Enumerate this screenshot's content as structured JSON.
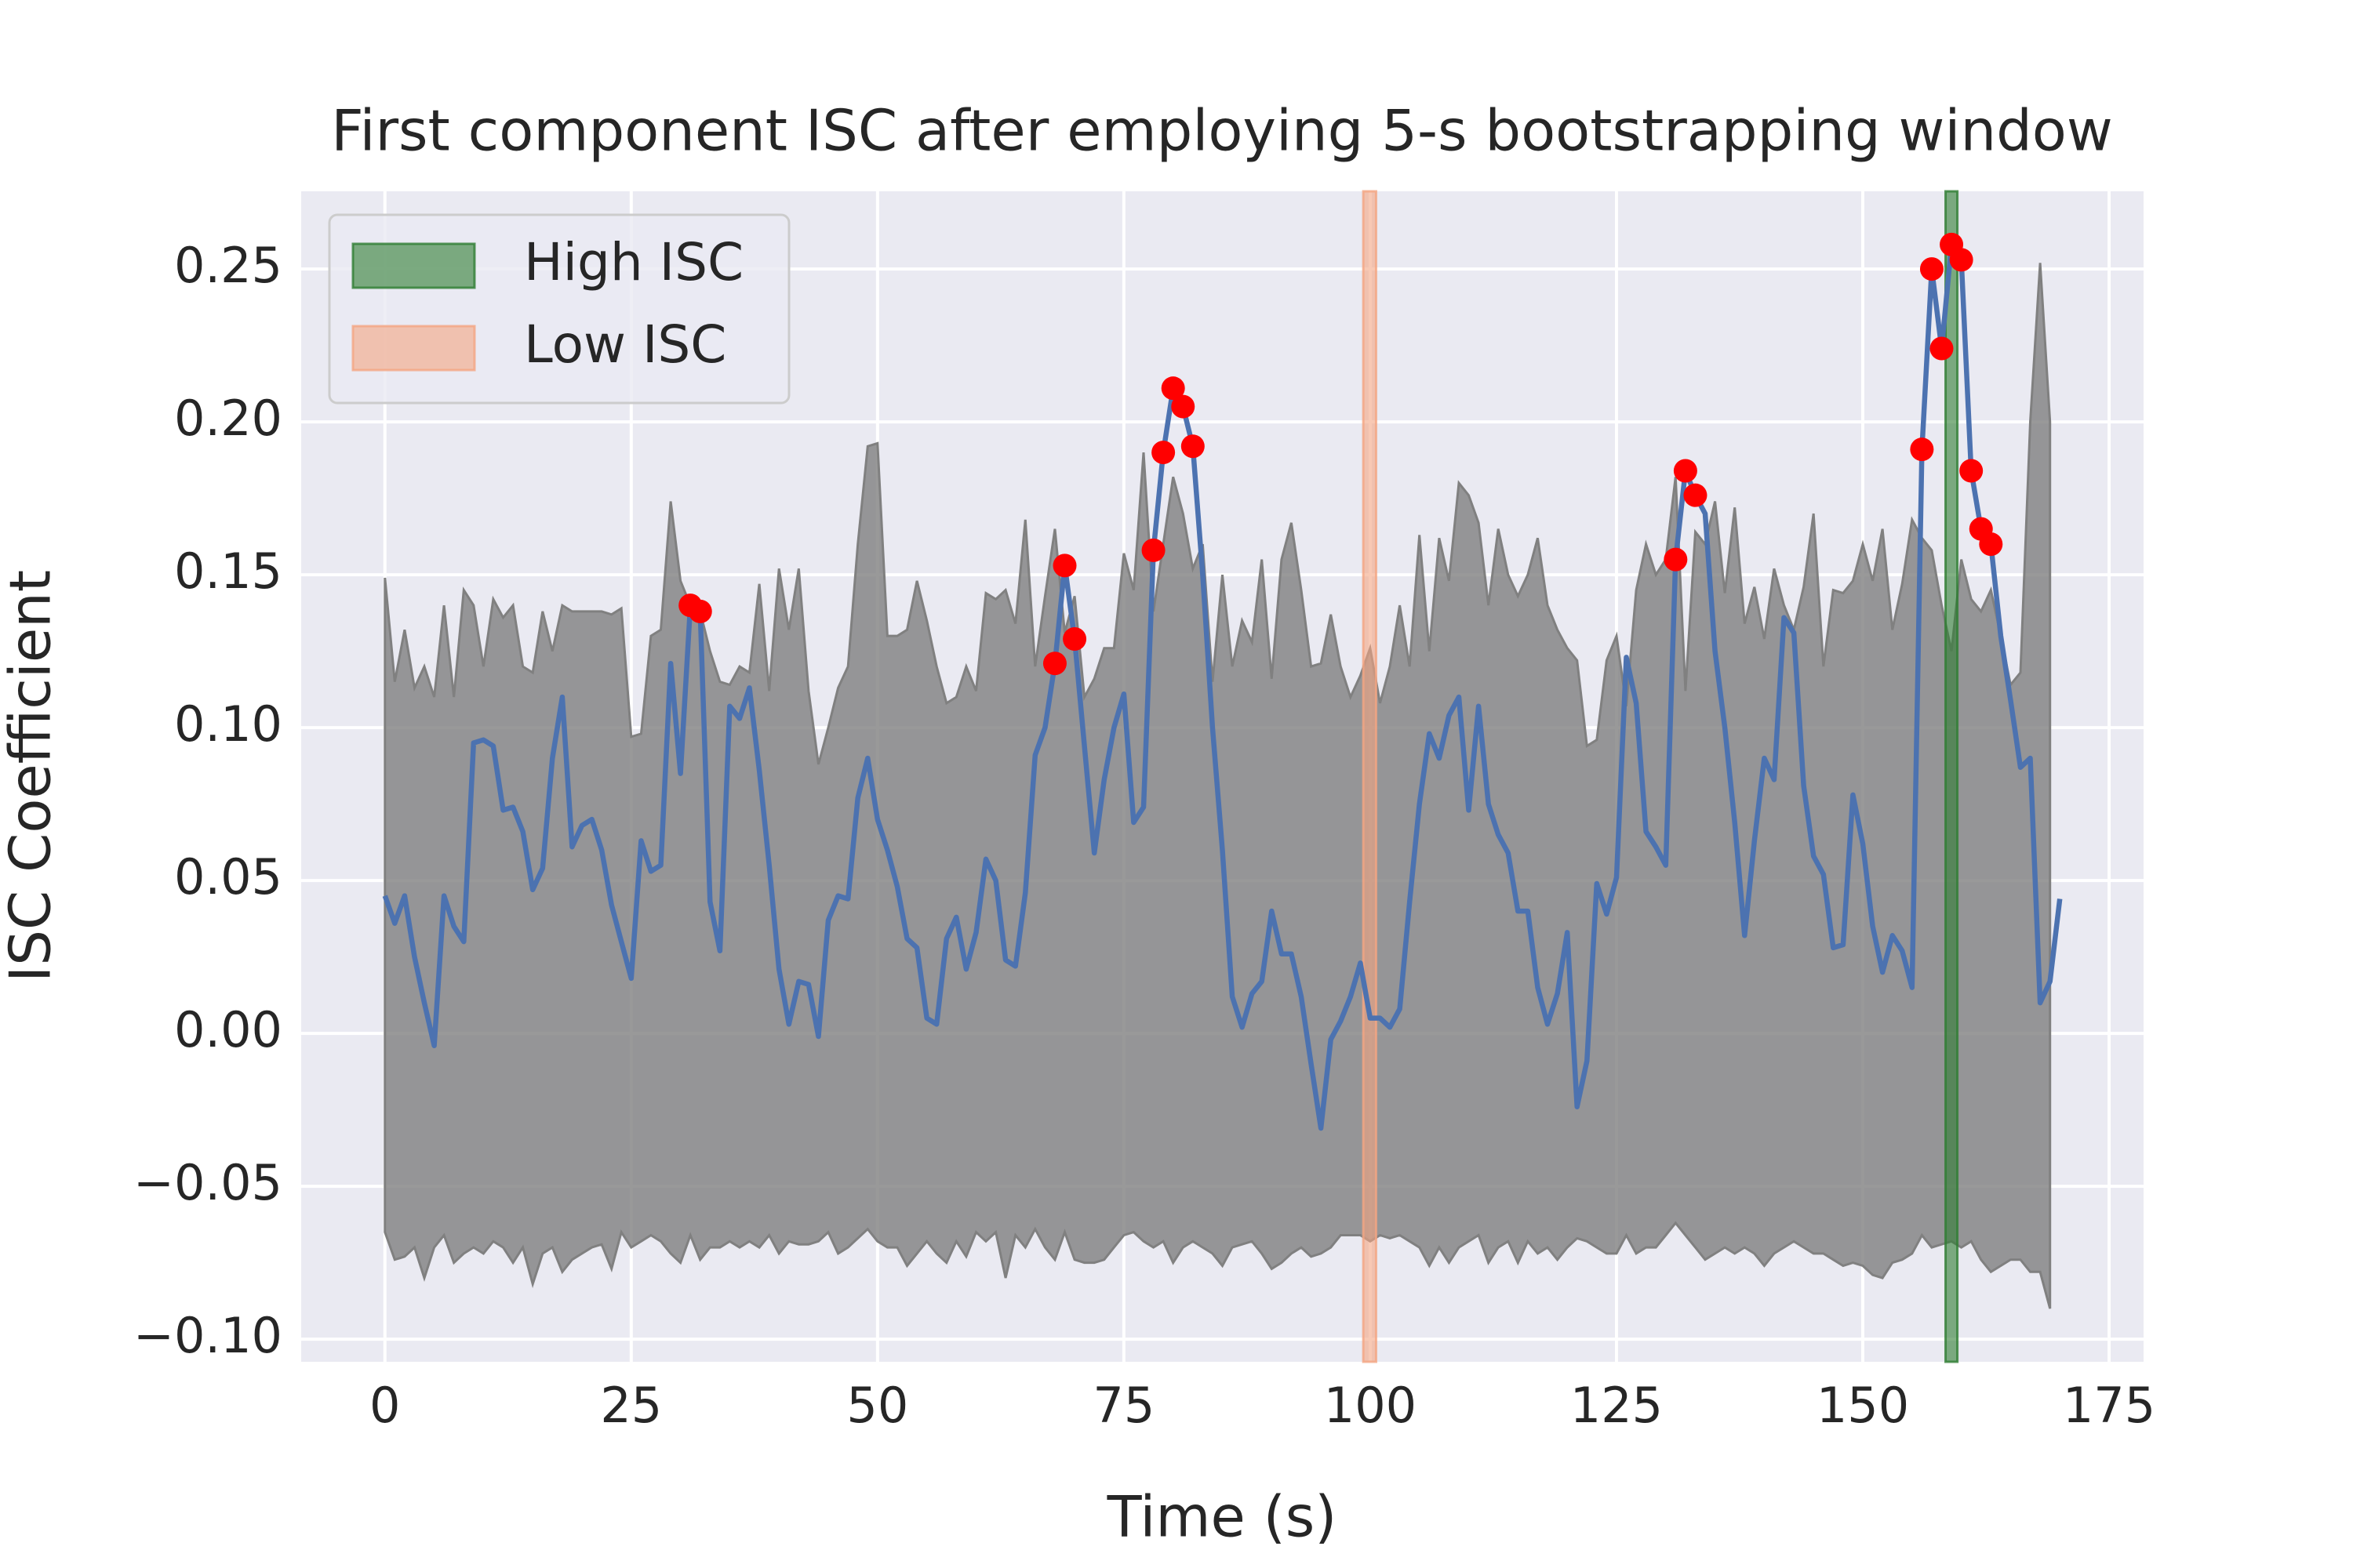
{
  "chart_data": {
    "type": "line",
    "title": "First component ISC after employing 5-s bootstrapping window",
    "x_label": "Time (s)",
    "y_label": "ISC Coefficient",
    "xlim": [
      -8.5,
      178.5
    ],
    "ylim": [
      -0.1074,
      0.2754
    ],
    "xticks": [
      0,
      25,
      50,
      75,
      100,
      125,
      150,
      175
    ],
    "yticks": [
      {
        "value": -0.1,
        "label": "−0.10"
      },
      {
        "value": -0.05,
        "label": "−0.05"
      },
      {
        "value": 0,
        "label": "0.00"
      },
      {
        "value": 0.05,
        "label": "0.05"
      },
      {
        "value": 0.1,
        "label": "0.10"
      },
      {
        "value": 0.15,
        "label": "0.15"
      },
      {
        "value": 0.2,
        "label": "0.20"
      },
      {
        "value": 0.25,
        "label": "0.25"
      }
    ],
    "grid": true,
    "legend": "upper left",
    "color": "#4c72b0",
    "x": [
      0,
      1,
      2,
      3,
      4,
      5,
      6,
      7,
      8,
      9,
      10,
      11,
      12,
      13,
      14,
      15,
      16,
      17,
      18,
      19,
      20,
      21,
      22,
      23,
      24,
      25,
      26,
      27,
      28,
      29,
      30,
      31,
      32,
      33,
      34,
      35,
      36,
      37,
      38,
      39,
      40,
      41,
      42,
      43,
      44,
      45,
      46,
      47,
      48,
      49,
      50,
      51,
      52,
      53,
      54,
      55,
      56,
      57,
      58,
      59,
      60,
      61,
      62,
      63,
      64,
      65,
      66,
      67,
      68,
      69,
      70,
      71,
      72,
      73,
      74,
      75,
      76,
      77,
      78,
      79,
      80,
      81,
      82,
      83,
      84,
      85,
      86,
      87,
      88,
      89,
      90,
      91,
      92,
      93,
      94,
      95,
      96,
      97,
      98,
      99,
      100,
      101,
      102,
      103,
      104,
      105,
      106,
      107,
      108,
      109,
      110,
      111,
      112,
      113,
      114,
      115,
      116,
      117,
      118,
      119,
      120,
      121,
      122,
      123,
      124,
      125,
      126,
      127,
      128,
      129,
      130,
      131,
      132,
      133,
      134,
      135,
      136,
      137,
      138,
      139,
      140,
      141,
      142,
      143,
      144,
      145,
      146,
      147,
      148,
      149,
      150,
      151,
      152,
      153,
      154,
      155,
      156,
      157,
      158,
      159,
      160,
      161,
      162,
      163,
      164,
      165,
      166,
      167,
      168,
      169,
      170
    ],
    "values": [
      0.045,
      0.036,
      0.045,
      0.025,
      0.01,
      -0.004,
      0.045,
      0.035,
      0.03,
      0.095,
      0.096,
      0.094,
      0.073,
      0.074,
      0.066,
      0.047,
      0.054,
      0.09,
      0.11,
      0.061,
      0.068,
      0.07,
      0.06,
      0.042,
      0.03,
      0.018,
      0.063,
      0.053,
      0.055,
      0.121,
      0.085,
      0.14,
      0.138,
      0.043,
      0.027,
      0.107,
      0.103,
      0.113,
      0.086,
      0.055,
      0.021,
      0.003,
      0.017,
      0.016,
      -0.001,
      0.037,
      0.045,
      0.044,
      0.077,
      0.09,
      0.07,
      0.06,
      0.048,
      0.031,
      0.028,
      0.005,
      0.003,
      0.031,
      0.038,
      0.021,
      0.033,
      0.057,
      0.05,
      0.024,
      0.022,
      0.046,
      0.091,
      0.1,
      0.121,
      0.153,
      0.129,
      0.094,
      0.059,
      0.083,
      0.1,
      0.111,
      0.069,
      0.074,
      0.158,
      0.19,
      0.211,
      0.205,
      0.192,
      0.15,
      0.1,
      0.06,
      0.012,
      0.002,
      0.013,
      0.017,
      0.04,
      0.026,
      0.026,
      0.012,
      -0.01,
      -0.031,
      -0.002,
      0.004,
      0.012,
      0.023,
      0.005,
      0.005,
      0.002,
      0.008,
      0.043,
      0.075,
      0.098,
      0.09,
      0.104,
      0.11,
      0.073,
      0.107,
      0.075,
      0.065,
      0.059,
      0.04,
      0.04,
      0.015,
      0.003,
      0.013,
      0.033,
      -0.024,
      -0.009,
      0.049,
      0.039,
      0.051,
      0.123,
      0.108,
      0.066,
      0.061,
      0.055,
      0.155,
      0.184,
      0.176,
      0.17,
      0.125,
      0.1,
      0.069,
      0.032,
      0.063,
      0.09,
      0.083,
      0.136,
      0.131,
      0.081,
      0.058,
      0.052,
      0.028,
      0.029,
      0.078,
      0.062,
      0.035,
      0.02,
      0.032,
      0.027,
      0.015,
      0.191,
      0.25,
      0.224,
      0.258,
      0.253,
      0.184,
      0.165,
      0.16,
      0.13,
      0.109,
      0.087,
      0.09,
      0.01,
      0.017,
      0.044
    ],
    "band": {
      "color": "#808080",
      "upper": [
        0.149,
        0.115,
        0.132,
        0.113,
        0.12,
        0.11,
        0.14,
        0.11,
        0.145,
        0.14,
        0.12,
        0.142,
        0.136,
        0.14,
        0.12,
        0.118,
        0.138,
        0.125,
        0.14,
        0.138,
        0.138,
        0.138,
        0.138,
        0.137,
        0.139,
        0.097,
        0.098,
        0.13,
        0.132,
        0.174,
        0.148,
        0.14,
        0.138,
        0.125,
        0.115,
        0.114,
        0.12,
        0.118,
        0.147,
        0.112,
        0.152,
        0.132,
        0.152,
        0.112,
        0.088,
        0.1,
        0.113,
        0.12,
        0.16,
        0.192,
        0.193,
        0.13,
        0.13,
        0.132,
        0.148,
        0.135,
        0.12,
        0.108,
        0.11,
        0.12,
        0.112,
        0.144,
        0.142,
        0.145,
        0.134,
        0.168,
        0.12,
        0.143,
        0.165,
        0.131,
        0.143,
        0.11,
        0.116,
        0.126,
        0.126,
        0.157,
        0.145,
        0.19,
        0.138,
        0.16,
        0.182,
        0.17,
        0.152,
        0.16,
        0.115,
        0.15,
        0.12,
        0.135,
        0.128,
        0.155,
        0.116,
        0.155,
        0.167,
        0.145,
        0.12,
        0.121,
        0.137,
        0.12,
        0.11,
        0.117,
        0.126,
        0.108,
        0.12,
        0.14,
        0.12,
        0.163,
        0.125,
        0.162,
        0.148,
        0.18,
        0.176,
        0.167,
        0.14,
        0.165,
        0.15,
        0.143,
        0.15,
        0.162,
        0.14,
        0.132,
        0.126,
        0.122,
        0.094,
        0.096,
        0.122,
        0.13,
        0.107,
        0.145,
        0.16,
        0.15,
        0.155,
        0.182,
        0.112,
        0.164,
        0.16,
        0.174,
        0.144,
        0.172,
        0.134,
        0.146,
        0.129,
        0.152,
        0.14,
        0.132,
        0.146,
        0.17,
        0.12,
        0.145,
        0.144,
        0.148,
        0.16,
        0.148,
        0.165,
        0.132,
        0.147,
        0.168,
        0.162,
        0.158,
        0.14,
        0.125,
        0.155,
        0.142,
        0.138,
        0.145,
        0.13,
        0.114,
        0.118,
        0.2,
        0.252,
        0.2,
        null
      ],
      "lower": [
        -0.065,
        -0.074,
        -0.073,
        -0.07,
        -0.08,
        -0.07,
        -0.066,
        -0.075,
        -0.072,
        -0.07,
        -0.072,
        -0.068,
        -0.07,
        -0.075,
        -0.07,
        -0.082,
        -0.072,
        -0.07,
        -0.078,
        -0.074,
        -0.072,
        -0.07,
        -0.069,
        -0.077,
        -0.065,
        -0.07,
        -0.068,
        -0.066,
        -0.068,
        -0.072,
        -0.075,
        -0.066,
        -0.074,
        -0.07,
        -0.07,
        -0.068,
        -0.07,
        -0.068,
        -0.07,
        -0.066,
        -0.072,
        -0.068,
        -0.069,
        -0.069,
        -0.068,
        -0.065,
        -0.072,
        -0.07,
        -0.067,
        -0.064,
        -0.068,
        -0.07,
        -0.07,
        -0.076,
        -0.072,
        -0.068,
        -0.072,
        -0.075,
        -0.068,
        -0.073,
        -0.065,
        -0.068,
        -0.065,
        -0.08,
        -0.066,
        -0.07,
        -0.064,
        -0.07,
        -0.074,
        -0.065,
        -0.074,
        -0.075,
        -0.075,
        -0.074,
        -0.07,
        -0.066,
        -0.065,
        -0.068,
        -0.07,
        -0.068,
        -0.075,
        -0.07,
        -0.068,
        -0.07,
        -0.072,
        -0.076,
        -0.07,
        -0.069,
        -0.068,
        -0.072,
        -0.077,
        -0.075,
        -0.072,
        -0.07,
        -0.073,
        -0.072,
        -0.07,
        -0.066,
        -0.066,
        -0.066,
        -0.068,
        -0.066,
        -0.067,
        -0.066,
        -0.068,
        -0.07,
        -0.076,
        -0.07,
        -0.075,
        -0.07,
        -0.068,
        -0.066,
        -0.075,
        -0.07,
        -0.068,
        -0.075,
        -0.068,
        -0.072,
        -0.07,
        -0.074,
        -0.07,
        -0.067,
        -0.068,
        -0.07,
        -0.072,
        -0.072,
        -0.066,
        -0.072,
        -0.07,
        -0.07,
        -0.066,
        -0.062,
        -0.066,
        -0.07,
        -0.074,
        -0.072,
        -0.07,
        -0.072,
        -0.07,
        -0.072,
        -0.076,
        -0.072,
        -0.07,
        -0.068,
        -0.07,
        -0.072,
        -0.072,
        -0.074,
        -0.076,
        -0.075,
        -0.076,
        -0.079,
        -0.08,
        -0.075,
        -0.074,
        -0.072,
        -0.066,
        -0.07,
        -0.069,
        -0.068,
        -0.07,
        -0.068,
        -0.074,
        -0.078,
        -0.076,
        -0.074,
        -0.074,
        -0.078,
        -0.078,
        -0.09,
        null
      ]
    },
    "points": {
      "color": "#ff0000",
      "x": [
        31,
        32,
        68,
        69,
        70,
        78,
        79,
        80,
        81,
        82,
        131,
        132,
        133,
        156,
        157,
        158,
        159,
        160,
        161,
        162,
        163
      ],
      "values": [
        0.14,
        0.138,
        0.121,
        0.153,
        0.129,
        0.158,
        0.19,
        0.211,
        0.205,
        0.192,
        0.155,
        0.184,
        0.176,
        0.191,
        0.25,
        0.224,
        0.258,
        0.253,
        0.184,
        0.165,
        0.16
      ]
    },
    "spans": [
      {
        "name": "High ISC",
        "color": "#2e7d32",
        "x": [
          158.4,
          159.6
        ]
      },
      {
        "name": "Low ISC",
        "color": "#f4a582",
        "x": [
          99.3,
          100.6
        ]
      }
    ]
  }
}
